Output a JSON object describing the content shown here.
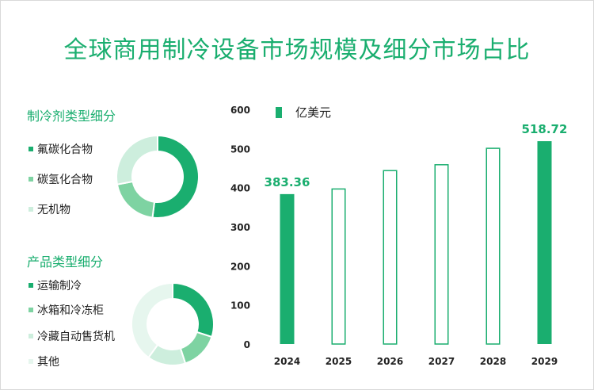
{
  "title": "全球商用制冷设备市场规模及细分市场占比",
  "colors": {
    "accent": "#1aae6f",
    "medium": "#7ed3a2",
    "light": "#cdeedd",
    "lighter": "#e6f6ee"
  },
  "refrigerant": {
    "title": "制冷剂类型细分",
    "items": [
      {
        "label": "氟碳化合物",
        "color": "#1aae6f",
        "share": 0.52
      },
      {
        "label": "碳氢化合物",
        "color": "#7ed3a2",
        "share": 0.2
      },
      {
        "label": "无机物",
        "color": "#cdeedd",
        "share": 0.28
      }
    ]
  },
  "product": {
    "title": "产品类型细分",
    "items": [
      {
        "label": "运输制冷",
        "color": "#1aae6f",
        "share": 0.3
      },
      {
        "label": "冰箱和冷冻柜",
        "color": "#7ed3a2",
        "share": 0.15
      },
      {
        "label": "冷藏自动售货机",
        "color": "#cdeedd",
        "share": 0.15
      },
      {
        "label": "其他",
        "color": "#e6f6ee",
        "share": 0.4
      }
    ]
  },
  "chart_data": {
    "type": "bar",
    "legend": "亿美元",
    "categories": [
      "2024",
      "2025",
      "2026",
      "2027",
      "2028",
      "2029"
    ],
    "values": [
      383.36,
      398,
      445,
      460,
      502,
      518.72
    ],
    "filled": [
      true,
      false,
      false,
      false,
      false,
      true
    ],
    "labels": [
      "383.36",
      "",
      "",
      "",
      "",
      "518.72"
    ],
    "yticks": [
      "0",
      "100",
      "200",
      "300",
      "400",
      "500",
      "600"
    ],
    "ylim": [
      0,
      600
    ]
  }
}
